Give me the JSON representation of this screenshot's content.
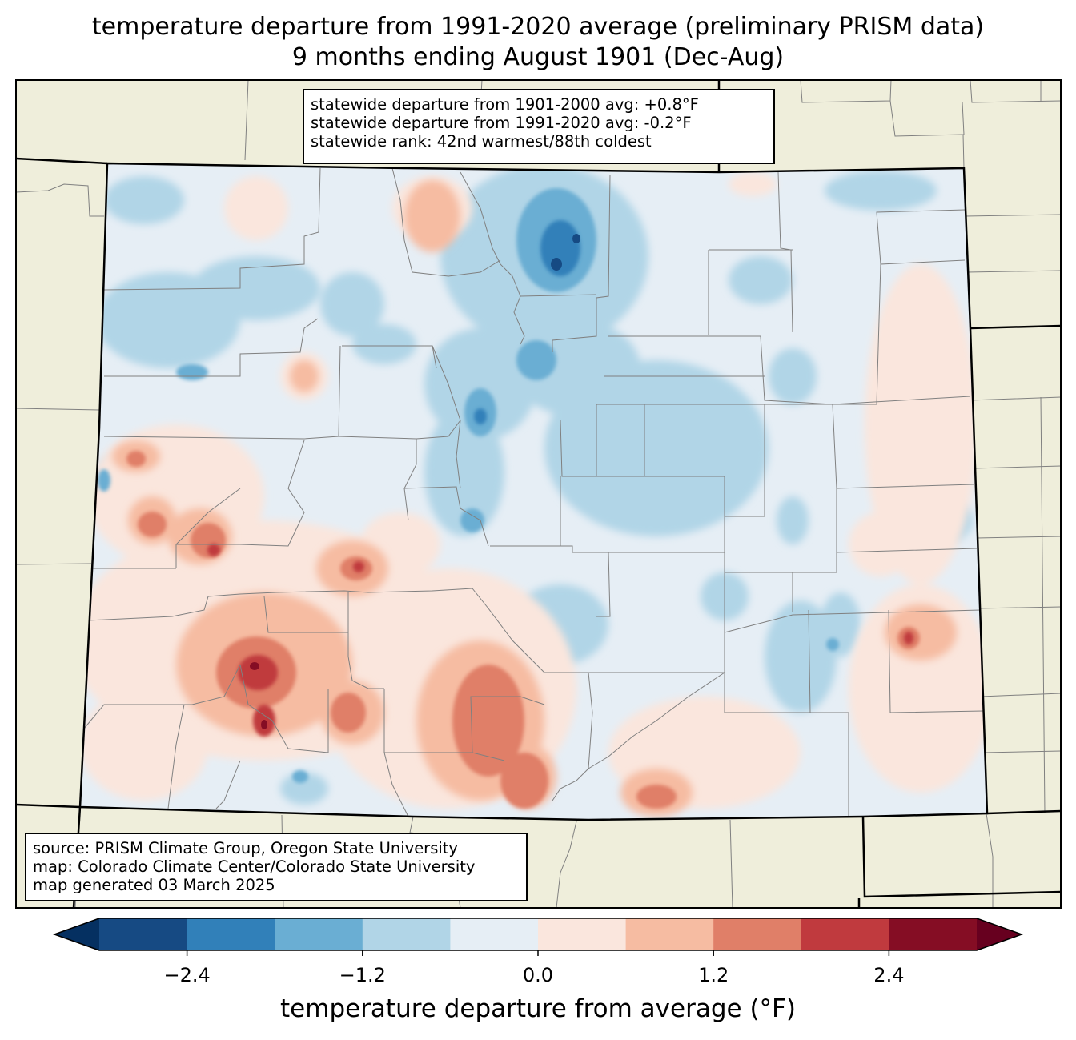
{
  "title": {
    "line1": "temperature departure from 1991-2020 average (preliminary PRISM data)",
    "line2": "9 months ending August 1901 (Dec-Aug)"
  },
  "stats": {
    "line1": "statewide departure from 1901-2000 avg: +0.8°F",
    "line2": "statewide departure from 1991-2020 avg: -0.2°F",
    "line3": "statewide rank: 42nd warmest/88th coldest"
  },
  "source": {
    "line1": "source: PRISM Climate Group, Oregon State University",
    "line2": "map: Colorado Climate Center/Colorado State University",
    "line3": "map generated 03 March 2025"
  },
  "colorbar": {
    "label": "temperature departure from average (°F)",
    "ticks": [
      "−2.4",
      "−1.2",
      "0.0",
      "1.2",
      "2.4"
    ],
    "tick_values": [
      -2.4,
      -1.2,
      0.0,
      1.2,
      2.4
    ],
    "bounds": [
      -3.0,
      -2.4,
      -1.8,
      -1.2,
      -0.6,
      0.0,
      0.6,
      1.2,
      1.8,
      2.4,
      3.0
    ],
    "colors": [
      "#164a83",
      "#3180b9",
      "#6aaed3",
      "#b1d5e7",
      "#e6eef5",
      "#fae6dd",
      "#f6bca2",
      "#e07f68",
      "#c03a3e",
      "#850d24"
    ],
    "under_color": "#053061",
    "over_color": "#67001f"
  },
  "map_colors": {
    "land": "#efeedb",
    "state_border": "#000000",
    "county_border": "#808080"
  }
}
